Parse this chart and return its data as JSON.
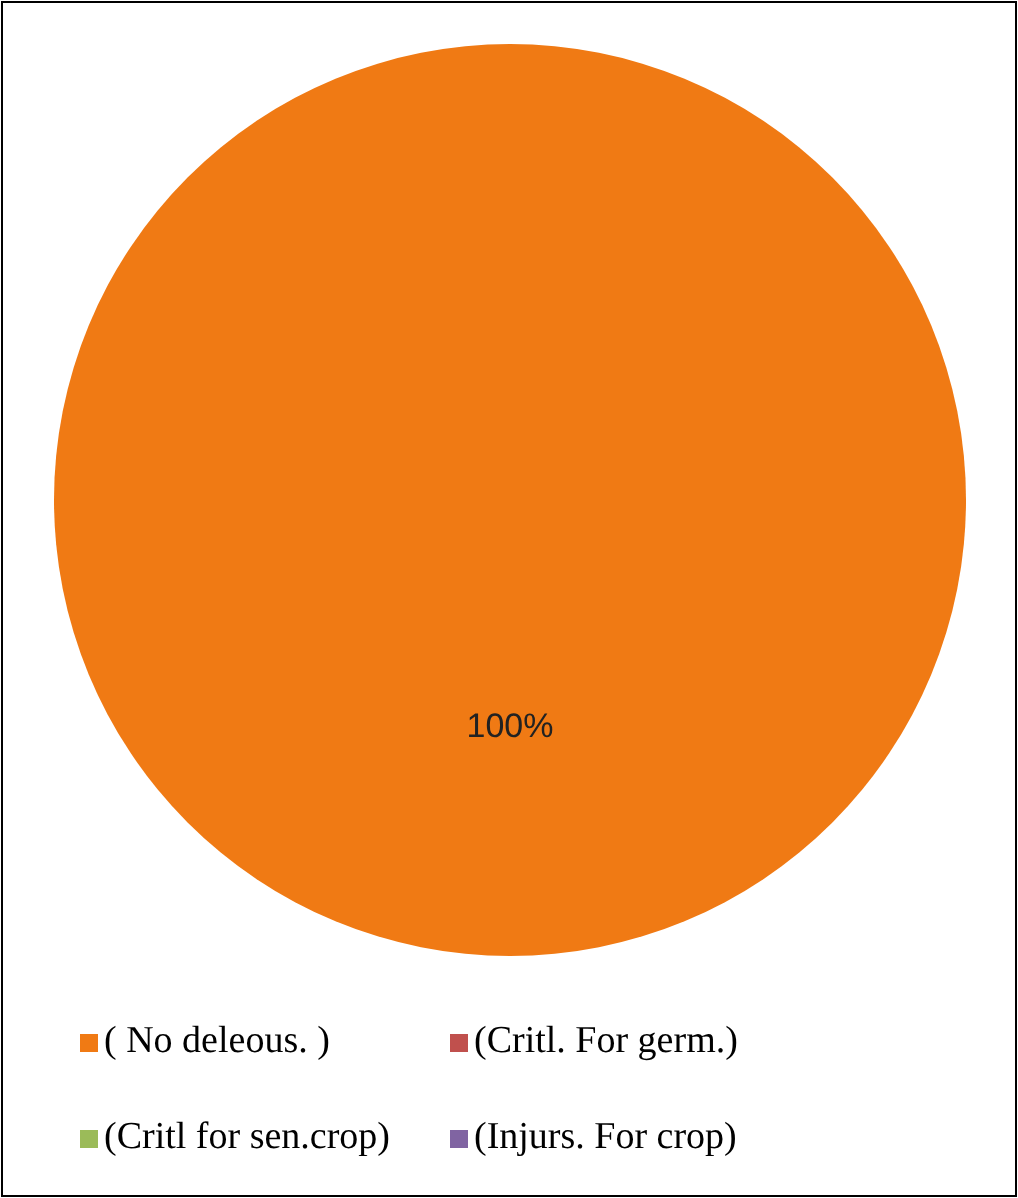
{
  "chart_data": {
    "type": "pie",
    "categories": [
      "( No deleous. )",
      "(Critl. For germ.)",
      "(Critl for sen.crop)",
      "(Injurs. For crop)"
    ],
    "values": [
      100,
      0,
      0,
      0
    ],
    "value_labels": [
      "100%",
      null,
      null,
      null
    ],
    "colors": [
      "#f07a14",
      "#c0504d",
      "#9bbb59",
      "#8064a2"
    ],
    "legend": "bottom"
  }
}
